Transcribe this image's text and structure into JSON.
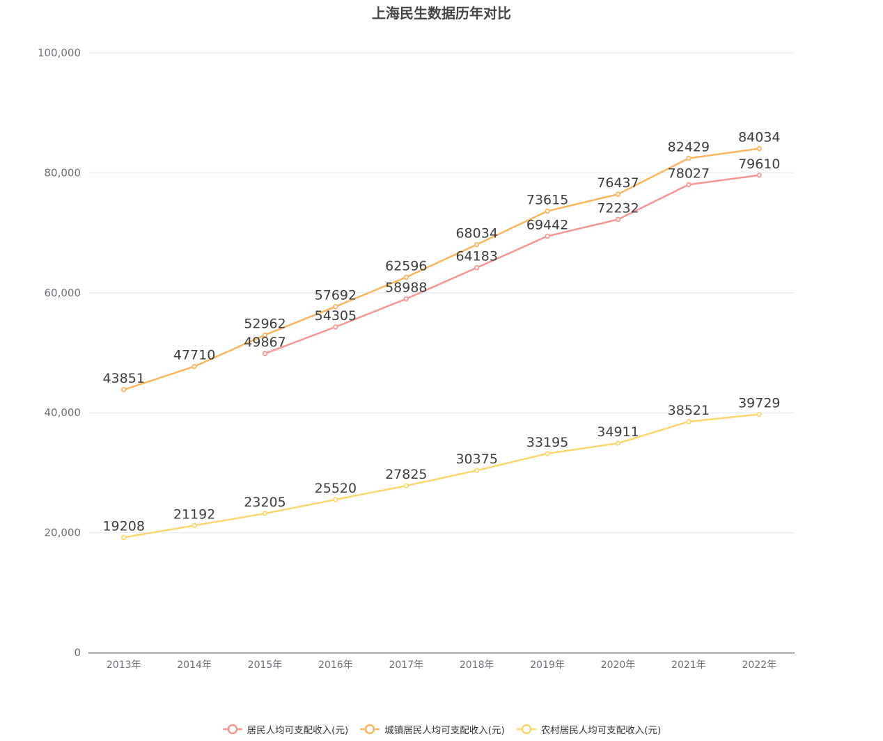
{
  "title": "上海民生数据历年对比",
  "chart_data": {
    "type": "line",
    "title": "上海民生数据历年对比",
    "xlabel": "",
    "ylabel": "",
    "categories": [
      "2013年",
      "2014年",
      "2015年",
      "2016年",
      "2017年",
      "2018年",
      "2019年",
      "2020年",
      "2021年",
      "2022年"
    ],
    "ylim": [
      0,
      100000
    ],
    "yticks": [
      0,
      20000,
      40000,
      60000,
      80000,
      100000
    ],
    "ytick_labels": [
      "0",
      "20,000",
      "40,000",
      "60,000",
      "80,000",
      "100,000"
    ],
    "grid": true,
    "legend_position": "bottom",
    "series": [
      {
        "name": "居民人均可支配收入(元)",
        "color": "#f89593",
        "values": [
          null,
          null,
          49867,
          54305,
          58988,
          64183,
          69442,
          72232,
          78027,
          79610
        ]
      },
      {
        "name": "城镇居民人均可支配收入(元)",
        "color": "#fbb65b",
        "values": [
          43851,
          47710,
          52962,
          57692,
          62596,
          68034,
          73615,
          76437,
          82429,
          84034
        ]
      },
      {
        "name": "农村居民人均可支配收入(元)",
        "color": "#fbd66b",
        "values": [
          19208,
          21192,
          23205,
          25520,
          27825,
          30375,
          33195,
          34911,
          38521,
          39729
        ]
      }
    ]
  },
  "colors": {
    "grid": "#e0e6f1",
    "axis": "#6e7079",
    "tick_label": "#6e7079",
    "data_label": "#3d3d3d",
    "title": "#464646"
  },
  "legend": {
    "items": [
      {
        "label": "居民人均可支配收入(元)",
        "color": "#f89593"
      },
      {
        "label": "城镇居民人均可支配收入(元)",
        "color": "#fbb65b"
      },
      {
        "label": "农村居民人均可支配收入(元)",
        "color": "#fbd66b"
      }
    ]
  }
}
